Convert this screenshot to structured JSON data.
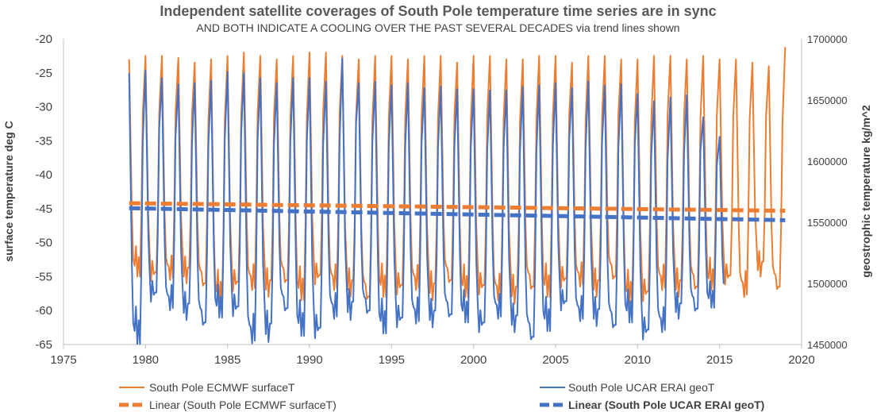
{
  "chart_data": {
    "type": "line",
    "title": "Independent satellite coverages of South Pole temperature time series are in sync",
    "subtitle": "AND BOTH INDICATE A COOLING OVER THE PAST SEVERAL DECADES via trend lines shown",
    "xlabel": "",
    "ylabel_left": "surface temperature deg C",
    "ylabel_right": "geostrophic temperature kg/m^2",
    "xlim": [
      1975,
      2020
    ],
    "ylim_left": [
      -65,
      -20
    ],
    "ylim_right": [
      1450000,
      1700000
    ],
    "x_ticks": [
      "1975",
      "1980",
      "1985",
      "1990",
      "1995",
      "2000",
      "2005",
      "2010",
      "2015",
      "2020"
    ],
    "y_ticks_left": [
      "-20",
      "-25",
      "-30",
      "-35",
      "-40",
      "-45",
      "-50",
      "-55",
      "-60",
      "-65"
    ],
    "y_ticks_right": [
      "1700000",
      "1650000",
      "1600000",
      "1550000",
      "1500000",
      "1450000"
    ],
    "grid": false,
    "legend_position": "bottom",
    "series": [
      {
        "name": "South Pole ECMWF surfaceT",
        "axis": "left",
        "color": "#ED7D31",
        "style": "line",
        "cycle": {
          "start_year": 1979.0,
          "end_year": 2019.0,
          "summer_peak": -23.0,
          "winter_low": -55.5,
          "peaks": [
            -23.0,
            -22.5,
            -22.5,
            -22.8,
            -23.5,
            -23.0,
            -22.5,
            -22.0,
            -22.5,
            -23.0,
            -22.5,
            -22.0,
            -22.0,
            -22.5,
            -23.0,
            -22.5,
            -22.5,
            -23.0,
            -22.5,
            -22.5,
            -23.5,
            -22.5,
            -22.5,
            -23.0,
            -23.0,
            -22.5,
            -22.5,
            -23.5,
            -22.5,
            -22.5,
            -23.0,
            -23.0,
            -22.5,
            -22.5,
            -23.0,
            -22.5,
            -23.0,
            -23.0,
            -23.5,
            -24.0,
            -21.2
          ],
          "lows": [
            -55.0,
            -56.0,
            -55.5,
            -56.0,
            -57.0,
            -59.0,
            -57.5,
            -57.0,
            -58.0,
            -56.5,
            -58.5,
            -56.5,
            -57.0,
            -58.0,
            -59.0,
            -58.0,
            -58.0,
            -57.0,
            -58.5,
            -56.5,
            -58.0,
            -58.0,
            -58.5,
            -59.0,
            -57.5,
            -58.0,
            -57.0,
            -56.5,
            -58.0,
            -56.0,
            -59.0,
            -59.0,
            -57.0,
            -58.0,
            -57.5,
            -57.0,
            -56.5,
            -58.0,
            -55.0,
            -57.5
          ]
        }
      },
      {
        "name": "South Pole UCAR ERAI geoT",
        "axis": "right",
        "color": "#4472C4",
        "style": "line",
        "cycle": {
          "start_year": 1979.0,
          "end_year": 2015.3,
          "summer_peak": 1672000,
          "winter_low": 1485000,
          "peaks": [
            1672000,
            1674000,
            1668000,
            1663000,
            1664000,
            1666000,
            1673000,
            1672000,
            1668000,
            1664000,
            1668000,
            1668000,
            1665000,
            1684000,
            1664000,
            1665000,
            1662000,
            1664000,
            1660000,
            1661000,
            1659000,
            1659000,
            1658000,
            1658000,
            1661000,
            1662000,
            1664000,
            1660000,
            1665000,
            1662000,
            1663000,
            1655000,
            1649000,
            1652000,
            1654000,
            1636000,
            1620000
          ],
          "lows": [
            1450000,
            1483000,
            1478000,
            1470000,
            1462000,
            1472000,
            1471000,
            1451000,
            1452000,
            1474000,
            1457000,
            1453000,
            1471000,
            1470000,
            1472000,
            1459000,
            1462000,
            1467000,
            1464000,
            1469000,
            1468000,
            1458000,
            1471000,
            1460000,
            1450000,
            1461000,
            1476000,
            1469000,
            1465000,
            1460000,
            1468000,
            1452000,
            1460000,
            1471000,
            1474000,
            1480000
          ]
        }
      },
      {
        "name": "Linear (South Pole ECMWF surfaceT)",
        "axis": "left",
        "color": "#ED7D31",
        "style": "dashed",
        "x": [
          1979.0,
          2019.0
        ],
        "y": [
          -44.2,
          -45.3
        ]
      },
      {
        "name": "Linear (South Pole UCAR ERAI geoT)",
        "axis": "right",
        "color": "#4472C4",
        "style": "dashed",
        "x": [
          1979.0,
          2019.0
        ],
        "y": [
          1561500,
          1551700
        ]
      }
    ]
  }
}
